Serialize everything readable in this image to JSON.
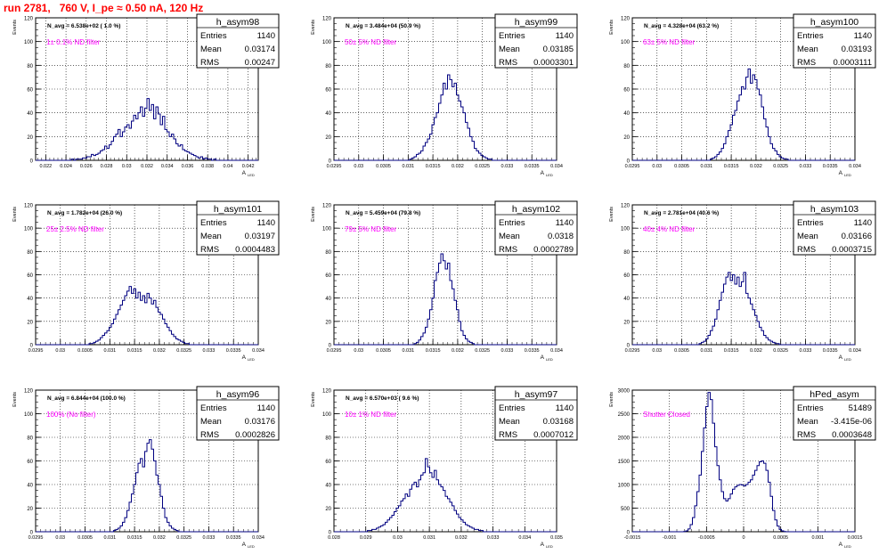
{
  "page": {
    "title": "run 2781,   760 V, I_pe ≈ 0.50 nA, 120 Hz"
  },
  "colors": {
    "title": "#ff0000",
    "annotation": "#ff00ff",
    "histogram": "#000080",
    "frame": "#000000",
    "grid": "#000000"
  },
  "chart_data": [
    {
      "type": "histogram",
      "name": "h_asym98",
      "ylabel": "Events",
      "xlabel": "A",
      "xlabel_sub": "LED",
      "header": "N_avg = 6.538e+02 ( 1.0 %)",
      "annotation": "1± 0.1% ND filter",
      "stats": [
        [
          "Entries",
          "1140"
        ],
        [
          "Mean",
          "0.03174"
        ],
        [
          "RMS",
          "0.00247"
        ]
      ],
      "xlim": [
        0.021,
        0.043
      ],
      "ylim": [
        0,
        120
      ],
      "xticks": [
        "0.022",
        "0.024",
        "0.026",
        "0.028",
        "0.03",
        "0.032",
        "0.034",
        "0.036",
        "0.038",
        "0.04",
        "0.042"
      ],
      "yticks": [
        "0",
        "20",
        "40",
        "60",
        "80",
        "100",
        "120"
      ],
      "bins": {
        "start": 0.021,
        "width": 0.00022
      },
      "counts": [
        0,
        0,
        0,
        0,
        0,
        0,
        0,
        0,
        0,
        0,
        0,
        0,
        0,
        0,
        0,
        0,
        1,
        0,
        1,
        1,
        1,
        2,
        2,
        3,
        3,
        5,
        4,
        5,
        6,
        8,
        9,
        12,
        10,
        13,
        16,
        20,
        22,
        26,
        20,
        24,
        28,
        30,
        27,
        33,
        38,
        35,
        40,
        45,
        37,
        44,
        52,
        42,
        47,
        35,
        45,
        39,
        30,
        37,
        26,
        24,
        20,
        22,
        18,
        14,
        12,
        13,
        9,
        8,
        7,
        6,
        5,
        4,
        3,
        2,
        3,
        1,
        2,
        1,
        1,
        0,
        1,
        0,
        0,
        0,
        0,
        0,
        0,
        0,
        0,
        0,
        0,
        0,
        0,
        0,
        0,
        0,
        0,
        0,
        0,
        0
      ]
    },
    {
      "type": "histogram",
      "name": "h_asym99",
      "ylabel": "Events",
      "xlabel": "A",
      "xlabel_sub": "LED",
      "header": "N_avg = 3.484e+04 (50.9 %)",
      "annotation": "50± 5% ND filter",
      "stats": [
        [
          "Entries",
          "1140"
        ],
        [
          "Mean",
          "0.03185"
        ],
        [
          "RMS",
          "0.0003301"
        ]
      ],
      "xlim": [
        0.0295,
        0.034
      ],
      "ylim": [
        0,
        120
      ],
      "xticks": [
        "0.0295",
        "0.03",
        "0.0305",
        "0.031",
        "0.0315",
        "0.032",
        "0.0325",
        "0.033",
        "0.0335",
        "0.034"
      ],
      "yticks": [
        "0",
        "20",
        "40",
        "60",
        "80",
        "100",
        "120"
      ],
      "bins": {
        "start": 0.0295,
        "width": 4.5e-05
      },
      "counts": [
        0,
        0,
        0,
        0,
        0,
        0,
        0,
        0,
        0,
        0,
        0,
        0,
        0,
        0,
        0,
        0,
        0,
        0,
        0,
        0,
        0,
        0,
        0,
        0,
        0,
        0,
        0,
        0,
        0,
        0,
        0,
        0,
        0,
        0,
        1,
        2,
        3,
        5,
        6,
        8,
        12,
        15,
        18,
        22,
        30,
        36,
        40,
        48,
        55,
        65,
        60,
        72,
        68,
        62,
        65,
        55,
        50,
        45,
        40,
        32,
        27,
        20,
        16,
        10,
        8,
        6,
        4,
        3,
        2,
        1,
        1,
        0,
        0,
        0,
        0,
        0,
        0,
        0,
        0,
        0,
        0,
        0,
        0,
        0,
        0,
        0,
        0,
        0,
        0,
        0,
        0,
        0,
        0,
        0,
        0,
        0,
        0,
        0,
        0,
        0
      ]
    },
    {
      "type": "histogram",
      "name": "h_asym100",
      "ylabel": "Events",
      "xlabel": "A",
      "xlabel_sub": "LED",
      "header": "N_avg = 4.328e+04 (63.2 %)",
      "annotation": "63± 5% ND filter",
      "stats": [
        [
          "Entries",
          "1140"
        ],
        [
          "Mean",
          "0.03193"
        ],
        [
          "RMS",
          "0.0003111"
        ]
      ],
      "xlim": [
        0.0295,
        0.034
      ],
      "ylim": [
        0,
        120
      ],
      "xticks": [
        "0.0295",
        "0.03",
        "0.0305",
        "0.031",
        "0.0315",
        "0.032",
        "0.0325",
        "0.033",
        "0.0335",
        "0.034"
      ],
      "yticks": [
        "0",
        "20",
        "40",
        "60",
        "80",
        "100",
        "120"
      ],
      "bins": {
        "start": 0.0295,
        "width": 4.5e-05
      },
      "counts": [
        0,
        0,
        0,
        0,
        0,
        0,
        0,
        0,
        0,
        0,
        0,
        0,
        0,
        0,
        0,
        0,
        0,
        0,
        0,
        0,
        0,
        0,
        0,
        0,
        0,
        0,
        0,
        0,
        0,
        0,
        0,
        0,
        0,
        0,
        0,
        1,
        2,
        3,
        5,
        7,
        10,
        14,
        20,
        25,
        30,
        38,
        42,
        50,
        55,
        62,
        60,
        70,
        77,
        65,
        72,
        68,
        60,
        55,
        45,
        35,
        28,
        20,
        14,
        10,
        8,
        5,
        3,
        2,
        1,
        1,
        0,
        0,
        0,
        0,
        0,
        0,
        0,
        0,
        0,
        0,
        0,
        0,
        0,
        0,
        0,
        0,
        0,
        0,
        0,
        0,
        0,
        0,
        0,
        0,
        0,
        0,
        0,
        0,
        0,
        0
      ]
    },
    {
      "type": "histogram",
      "name": "h_asym101",
      "ylabel": "Events",
      "xlabel": "A",
      "xlabel_sub": "LED",
      "header": "N_avg = 1.782e+04 (26.0 %)",
      "annotation": "25± 2.5% ND filter",
      "stats": [
        [
          "Entries",
          "1140"
        ],
        [
          "Mean",
          "0.03197"
        ],
        [
          "RMS",
          "0.0004483"
        ]
      ],
      "xlim": [
        0.0295,
        0.034
      ],
      "ylim": [
        0,
        120
      ],
      "xticks": [
        "0.0295",
        "0.03",
        "0.0305",
        "0.031",
        "0.0315",
        "0.032",
        "0.0325",
        "0.033",
        "0.0335",
        "0.034"
      ],
      "yticks": [
        "0",
        "20",
        "40",
        "60",
        "80",
        "100",
        "120"
      ],
      "bins": {
        "start": 0.0295,
        "width": 4.5e-05
      },
      "counts": [
        0,
        0,
        0,
        0,
        0,
        0,
        0,
        0,
        0,
        0,
        0,
        0,
        0,
        0,
        0,
        0,
        0,
        0,
        0,
        0,
        0,
        0,
        0,
        0,
        1,
        1,
        2,
        3,
        4,
        6,
        8,
        10,
        12,
        15,
        18,
        22,
        26,
        30,
        34,
        38,
        42,
        46,
        50,
        44,
        48,
        40,
        45,
        38,
        42,
        36,
        44,
        40,
        35,
        38,
        32,
        28,
        26,
        22,
        18,
        15,
        12,
        9,
        7,
        5,
        4,
        3,
        2,
        1,
        1,
        0,
        0,
        0,
        0,
        0,
        0,
        0,
        0,
        0,
        0,
        0,
        0,
        0,
        0,
        0,
        0,
        0,
        0,
        0,
        0,
        0,
        0,
        0,
        0,
        0,
        0,
        0,
        0,
        0,
        0,
        0
      ]
    },
    {
      "type": "histogram",
      "name": "h_asym102",
      "ylabel": "Events",
      "xlabel": "A",
      "xlabel_sub": "LED",
      "header": "N_avg = 5.459e+04 (79.8 %)",
      "annotation": "79± 5% ND filter",
      "stats": [
        [
          "Entries",
          "1140"
        ],
        [
          "Mean",
          "0.0318"
        ],
        [
          "RMS",
          "0.0002789"
        ]
      ],
      "xlim": [
        0.0295,
        0.034
      ],
      "ylim": [
        0,
        120
      ],
      "xticks": [
        "0.0295",
        "0.03",
        "0.0305",
        "0.031",
        "0.0315",
        "0.032",
        "0.0325",
        "0.033",
        "0.0335",
        "0.034"
      ],
      "yticks": [
        "0",
        "20",
        "40",
        "60",
        "80",
        "100",
        "120"
      ],
      "bins": {
        "start": 0.0295,
        "width": 4.5e-05
      },
      "counts": [
        0,
        0,
        0,
        0,
        0,
        0,
        0,
        0,
        0,
        0,
        0,
        0,
        0,
        0,
        0,
        0,
        0,
        0,
        0,
        0,
        0,
        0,
        0,
        0,
        0,
        0,
        0,
        0,
        0,
        0,
        0,
        0,
        0,
        0,
        0,
        0,
        1,
        2,
        4,
        7,
        10,
        15,
        22,
        30,
        40,
        55,
        62,
        70,
        78,
        72,
        65,
        70,
        55,
        48,
        38,
        30,
        20,
        12,
        8,
        5,
        3,
        2,
        1,
        0,
        0,
        0,
        0,
        0,
        0,
        0,
        0,
        0,
        0,
        0,
        0,
        0,
        0,
        0,
        0,
        0,
        0,
        0,
        0,
        0,
        0,
        0,
        0,
        0,
        0,
        0,
        0,
        0,
        0,
        0,
        0,
        0,
        0,
        0,
        0,
        0
      ]
    },
    {
      "type": "histogram",
      "name": "h_asym103",
      "ylabel": "Events",
      "xlabel": "A",
      "xlabel_sub": "LED",
      "header": "N_avg = 2.781e+04 (40.6 %)",
      "annotation": "40± 4% ND filter",
      "stats": [
        [
          "Entries",
          "1140"
        ],
        [
          "Mean",
          "0.03166"
        ],
        [
          "RMS",
          "0.0003715"
        ]
      ],
      "xlim": [
        0.0295,
        0.034
      ],
      "ylim": [
        0,
        120
      ],
      "xticks": [
        "0.0295",
        "0.03",
        "0.0305",
        "0.031",
        "0.0315",
        "0.032",
        "0.0325",
        "0.033",
        "0.0335",
        "0.034"
      ],
      "yticks": [
        "0",
        "20",
        "40",
        "60",
        "80",
        "100",
        "120"
      ],
      "bins": {
        "start": 0.0295,
        "width": 4.5e-05
      },
      "counts": [
        0,
        0,
        0,
        0,
        0,
        0,
        0,
        0,
        0,
        0,
        0,
        0,
        0,
        0,
        0,
        0,
        0,
        0,
        0,
        0,
        0,
        0,
        0,
        0,
        0,
        0,
        0,
        0,
        0,
        0,
        1,
        2,
        3,
        5,
        8,
        12,
        16,
        22,
        30,
        38,
        45,
        52,
        58,
        62,
        55,
        60,
        52,
        58,
        50,
        54,
        62,
        44,
        40,
        35,
        30,
        25,
        20,
        15,
        12,
        8,
        6,
        4,
        3,
        2,
        1,
        1,
        0,
        0,
        0,
        0,
        0,
        0,
        0,
        0,
        0,
        0,
        0,
        0,
        0,
        0,
        0,
        0,
        0,
        0,
        0,
        0,
        0,
        0,
        0,
        0,
        0,
        0,
        0,
        0,
        0,
        0,
        0,
        0,
        0,
        0
      ]
    },
    {
      "type": "histogram",
      "name": "h_asym96",
      "ylabel": "Events",
      "xlabel": "A",
      "xlabel_sub": "LED",
      "header": "N_avg = 6.844e+04 (100.0 %)",
      "annotation": "100% (No filter)",
      "stats": [
        [
          "Entries",
          "1140"
        ],
        [
          "Mean",
          "0.03176"
        ],
        [
          "RMS",
          "0.0002826"
        ]
      ],
      "xlim": [
        0.0295,
        0.034
      ],
      "ylim": [
        0,
        120
      ],
      "xticks": [
        "0.0295",
        "0.03",
        "0.0305",
        "0.031",
        "0.0315",
        "0.032",
        "0.0325",
        "0.033",
        "0.0335",
        "0.034"
      ],
      "yticks": [
        "0",
        "20",
        "40",
        "60",
        "80",
        "100",
        "120"
      ],
      "bins": {
        "start": 0.0295,
        "width": 4.5e-05
      },
      "counts": [
        0,
        0,
        0,
        0,
        0,
        0,
        0,
        0,
        0,
        0,
        0,
        0,
        0,
        0,
        0,
        0,
        0,
        0,
        0,
        0,
        0,
        0,
        0,
        0,
        0,
        0,
        0,
        0,
        0,
        0,
        0,
        0,
        0,
        0,
        0,
        1,
        2,
        3,
        5,
        8,
        12,
        18,
        25,
        32,
        40,
        50,
        58,
        62,
        55,
        68,
        75,
        78,
        70,
        60,
        48,
        40,
        30,
        20,
        12,
        8,
        5,
        3,
        2,
        1,
        0,
        0,
        0,
        0,
        0,
        0,
        0,
        0,
        0,
        0,
        0,
        0,
        0,
        0,
        0,
        0,
        0,
        0,
        0,
        0,
        0,
        0,
        0,
        0,
        0,
        0,
        0,
        0,
        0,
        0,
        0,
        0,
        0,
        0,
        0,
        0
      ]
    },
    {
      "type": "histogram",
      "name": "h_asym97",
      "ylabel": "Events",
      "xlabel": "A",
      "xlabel_sub": "LED",
      "header": "N_avg = 6.570e+03 ( 9.6 %)",
      "annotation": "10± 1% ND filter",
      "stats": [
        [
          "Entries",
          "1140"
        ],
        [
          "Mean",
          "0.03168"
        ],
        [
          "RMS",
          "0.0007012"
        ]
      ],
      "xlim": [
        0.028,
        0.035
      ],
      "ylim": [
        0,
        120
      ],
      "xticks": [
        "0.028",
        "0.029",
        "0.03",
        "0.031",
        "0.032",
        "0.033",
        "0.034",
        "0.035"
      ],
      "yticks": [
        "0",
        "20",
        "40",
        "60",
        "80",
        "100",
        "120"
      ],
      "bins": {
        "start": 0.028,
        "width": 7e-05
      },
      "counts": [
        0,
        0,
        0,
        0,
        0,
        0,
        0,
        0,
        0,
        0,
        0,
        0,
        0,
        0,
        0,
        1,
        1,
        2,
        2,
        3,
        4,
        5,
        6,
        8,
        10,
        12,
        14,
        17,
        20,
        22,
        26,
        28,
        32,
        30,
        36,
        40,
        42,
        38,
        44,
        48,
        50,
        62,
        55,
        50,
        46,
        52,
        44,
        40,
        38,
        35,
        30,
        28,
        25,
        22,
        18,
        15,
        12,
        10,
        8,
        6,
        5,
        4,
        3,
        2,
        2,
        1,
        1,
        0,
        0,
        0,
        0,
        0,
        0,
        0,
        0,
        0,
        0,
        0,
        0,
        0,
        0,
        0,
        0,
        0,
        0,
        0,
        0,
        0,
        0,
        0,
        0,
        0,
        0,
        0,
        0,
        0,
        0,
        0,
        0,
        0
      ]
    },
    {
      "type": "histogram",
      "name": "hPed_asym",
      "ylabel": "Events",
      "xlabel": "A",
      "xlabel_sub": "LED",
      "header": "",
      "annotation": "Shutter Closed",
      "stats": [
        [
          "Entries",
          "51489"
        ],
        [
          "Mean",
          "-3.415e-06"
        ],
        [
          "RMS",
          "0.0003648"
        ]
      ],
      "xlim": [
        -0.0015,
        0.0015
      ],
      "ylim": [
        0,
        3000
      ],
      "xticks": [
        "-0.0015",
        "-0.001",
        "-0.0005",
        "0",
        "0.0005",
        "0.001",
        "0.0015"
      ],
      "yticks": [
        "0",
        "500",
        "1000",
        "1500",
        "2000",
        "2500",
        "3000"
      ],
      "bins": {
        "start": -0.0015,
        "width": 3e-05
      },
      "counts": [
        0,
        0,
        0,
        0,
        0,
        0,
        0,
        0,
        0,
        0,
        0,
        0,
        0,
        0,
        0,
        0,
        0,
        0,
        0,
        0,
        0,
        0,
        0,
        5,
        20,
        60,
        150,
        300,
        550,
        850,
        1200,
        1700,
        2200,
        2650,
        2950,
        2800,
        2300,
        1800,
        1400,
        1100,
        850,
        700,
        650,
        700,
        800,
        900,
        950,
        980,
        1000,
        990,
        970,
        1000,
        1050,
        1100,
        1200,
        1300,
        1400,
        1480,
        1500,
        1450,
        1300,
        1050,
        750,
        450,
        250,
        120,
        50,
        20,
        5,
        0,
        0,
        0,
        0,
        0,
        0,
        0,
        0,
        0,
        0,
        0,
        0,
        0,
        0,
        0,
        0,
        0,
        0,
        0,
        0,
        0,
        0,
        0,
        0,
        0,
        0,
        0,
        0,
        0,
        0,
        0
      ]
    }
  ]
}
